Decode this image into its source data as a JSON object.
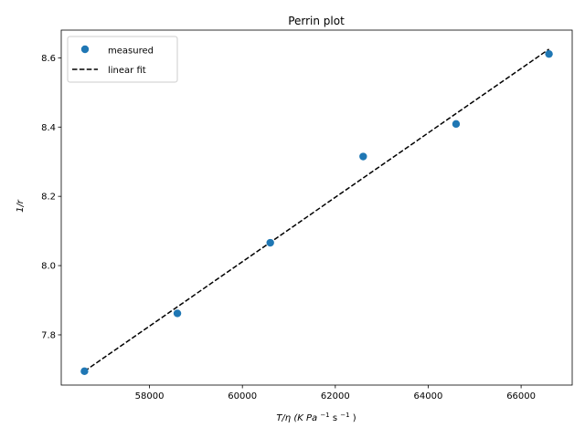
{
  "chart_data": {
    "type": "scatter",
    "title": "Perrin plot",
    "xlabel": {
      "base": "T/η (K Pa",
      "exp1": "−1",
      "mid": " s",
      "exp2": "−1",
      "end": ")"
    },
    "ylabel": "1/r",
    "xlim": [
      56100,
      67100
    ],
    "ylim": [
      7.655,
      8.68
    ],
    "xticks": [
      58000,
      60000,
      62000,
      64000,
      66000
    ],
    "yticks": [
      7.8,
      8.0,
      8.2,
      8.4,
      8.6
    ],
    "grid": false,
    "legend_position": "upper left",
    "series": [
      {
        "name": "measured",
        "kind": "points",
        "color": "#1f77b4",
        "x": [
          56600,
          58600,
          60600,
          62600,
          64600,
          66600
        ],
        "y": [
          7.695,
          7.862,
          8.066,
          8.315,
          8.409,
          8.611
        ]
      },
      {
        "name": "linear fit",
        "kind": "dashed-line",
        "color": "#000000",
        "x": [
          56600,
          66600
        ],
        "y": [
          7.695,
          8.625
        ]
      }
    ]
  }
}
